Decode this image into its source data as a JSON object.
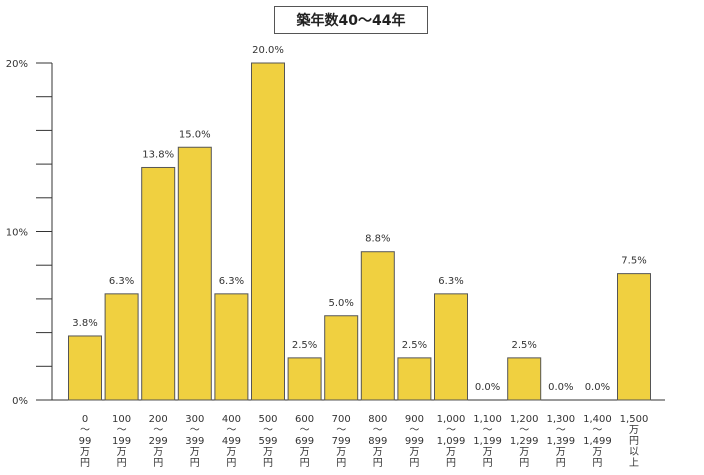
{
  "chart_data": {
    "type": "bar",
    "title": "築年数40～44年",
    "categories": [
      [
        "0",
        "～",
        "99",
        "万",
        "円"
      ],
      [
        "100",
        "～",
        "199",
        "万",
        "円"
      ],
      [
        "200",
        "～",
        "299",
        "万",
        "円"
      ],
      [
        "300",
        "～",
        "399",
        "万",
        "円"
      ],
      [
        "400",
        "～",
        "499",
        "万",
        "円"
      ],
      [
        "500",
        "～",
        "599",
        "万",
        "円"
      ],
      [
        "600",
        "～",
        "699",
        "万",
        "円"
      ],
      [
        "700",
        "～",
        "799",
        "万",
        "円"
      ],
      [
        "800",
        "～",
        "899",
        "万",
        "円"
      ],
      [
        "900",
        "～",
        "999",
        "万",
        "円"
      ],
      [
        "1,000",
        "～",
        "1,099",
        "万",
        "円"
      ],
      [
        "1,100",
        "～",
        "1,199",
        "万",
        "円"
      ],
      [
        "1,200",
        "～",
        "1,299",
        "万",
        "円"
      ],
      [
        "1,300",
        "～",
        "1,399",
        "万",
        "円"
      ],
      [
        "1,400",
        "～",
        "1,499",
        "万",
        "円"
      ],
      [
        "1,500",
        "万",
        "円",
        "以",
        "上"
      ]
    ],
    "values": [
      3.8,
      6.3,
      13.8,
      15.0,
      6.3,
      20.0,
      2.5,
      5.0,
      8.8,
      2.5,
      6.3,
      0.0,
      2.5,
      0.0,
      0.0,
      7.5
    ],
    "value_labels": [
      "3.8%",
      "6.3%",
      "13.8%",
      "15.0%",
      "6.3%",
      "20.0%",
      "2.5%",
      "5.0%",
      "8.8%",
      "2.5%",
      "6.3%",
      "0.0%",
      "2.5%",
      "0.0%",
      "0.0%",
      "7.5%"
    ],
    "y_ticks": [
      {
        "value": 0,
        "label": "0%"
      },
      {
        "value": 10,
        "label": "10%"
      },
      {
        "value": 20,
        "label": "20%"
      }
    ],
    "ylim": [
      0,
      20
    ],
    "minor_tick_step": 2,
    "bar_color": "#f0d040",
    "bar_stroke": "#555555",
    "grid": false,
    "legend": "none"
  }
}
